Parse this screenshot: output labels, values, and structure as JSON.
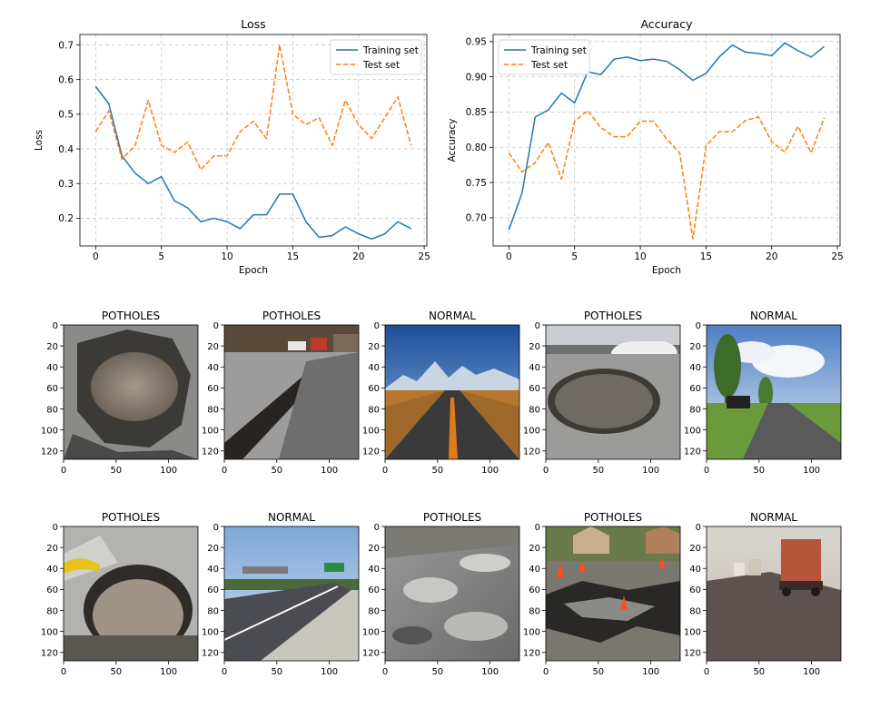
{
  "chart_data": [
    {
      "type": "line",
      "title": "Loss",
      "xlabel": "Epoch",
      "ylabel": "Loss",
      "xlim": [
        -1.2,
        25.2
      ],
      "ylim": [
        0.12,
        0.73
      ],
      "x_ticks": [
        0,
        5,
        10,
        15,
        20,
        25
      ],
      "y_ticks": [
        0.2,
        0.3,
        0.4,
        0.5,
        0.6,
        0.7
      ],
      "grid": true,
      "legend_position": "top-right",
      "x": [
        0,
        1,
        2,
        3,
        4,
        5,
        6,
        7,
        8,
        9,
        10,
        11,
        12,
        13,
        14,
        15,
        16,
        17,
        18,
        19,
        20,
        21,
        22,
        23,
        24
      ],
      "series": [
        {
          "name": "Training set",
          "color": "#1f77b4",
          "style": "solid",
          "values": [
            0.58,
            0.53,
            0.38,
            0.33,
            0.3,
            0.32,
            0.25,
            0.23,
            0.19,
            0.2,
            0.19,
            0.17,
            0.21,
            0.21,
            0.27,
            0.27,
            0.19,
            0.145,
            0.15,
            0.175,
            0.155,
            0.14,
            0.155,
            0.19,
            0.17
          ]
        },
        {
          "name": "Test set",
          "color": "#ff7f0e",
          "style": "dashed",
          "values": [
            0.45,
            0.51,
            0.37,
            0.41,
            0.54,
            0.41,
            0.39,
            0.42,
            0.34,
            0.38,
            0.38,
            0.45,
            0.48,
            0.43,
            0.7,
            0.5,
            0.47,
            0.49,
            0.41,
            0.54,
            0.47,
            0.43,
            0.49,
            0.55,
            0.41
          ]
        }
      ]
    },
    {
      "type": "line",
      "title": "Accuracy",
      "xlabel": "Epoch",
      "ylabel": "Accuracy",
      "xlim": [
        -1.2,
        25.2
      ],
      "ylim": [
        0.66,
        0.96
      ],
      "x_ticks": [
        0,
        5,
        10,
        15,
        20,
        25
      ],
      "y_ticks": [
        0.7,
        0.75,
        0.8,
        0.85,
        0.9,
        0.95
      ],
      "y_tick_labels": [
        "0.70",
        "0.75",
        "0.80",
        "0.85",
        "0.90",
        "0.95"
      ],
      "grid": true,
      "legend_position": "top-left",
      "x": [
        0,
        1,
        2,
        3,
        4,
        5,
        6,
        7,
        8,
        9,
        10,
        11,
        12,
        13,
        14,
        15,
        16,
        17,
        18,
        19,
        20,
        21,
        22,
        23,
        24
      ],
      "series": [
        {
          "name": "Training set",
          "color": "#1f77b4",
          "style": "solid",
          "values": [
            0.683,
            0.735,
            0.843,
            0.853,
            0.877,
            0.863,
            0.907,
            0.903,
            0.925,
            0.928,
            0.923,
            0.925,
            0.922,
            0.91,
            0.895,
            0.905,
            0.928,
            0.945,
            0.935,
            0.933,
            0.93,
            0.948,
            0.937,
            0.928,
            0.943
          ]
        },
        {
          "name": "Test set",
          "color": "#ff7f0e",
          "style": "dashed",
          "values": [
            0.792,
            0.765,
            0.778,
            0.807,
            0.755,
            0.837,
            0.852,
            0.828,
            0.815,
            0.815,
            0.837,
            0.837,
            0.812,
            0.792,
            0.67,
            0.802,
            0.822,
            0.822,
            0.838,
            0.843,
            0.808,
            0.793,
            0.83,
            0.792,
            0.842
          ]
        }
      ]
    }
  ],
  "gallery": {
    "x_ticks": [
      0,
      50,
      100
    ],
    "y_ticks": [
      0,
      20,
      40,
      60,
      80,
      100,
      120
    ],
    "extent": 128,
    "images": [
      {
        "label": "POTHOLES",
        "scene": "pothole-puddle"
      },
      {
        "label": "POTHOLES",
        "scene": "road-crack-cars"
      },
      {
        "label": "NORMAL",
        "scene": "highway-mountains"
      },
      {
        "label": "POTHOLES",
        "scene": "pothole-car"
      },
      {
        "label": "NORMAL",
        "scene": "country-road-trees"
      },
      {
        "label": "POTHOLES",
        "scene": "pothole-closeup"
      },
      {
        "label": "NORMAL",
        "scene": "freeway-signs"
      },
      {
        "label": "POTHOLES",
        "scene": "flooded-broken-road"
      },
      {
        "label": "POTHOLES",
        "scene": "broken-asphalt-cones"
      },
      {
        "label": "NORMAL",
        "scene": "road-trucks"
      }
    ]
  }
}
